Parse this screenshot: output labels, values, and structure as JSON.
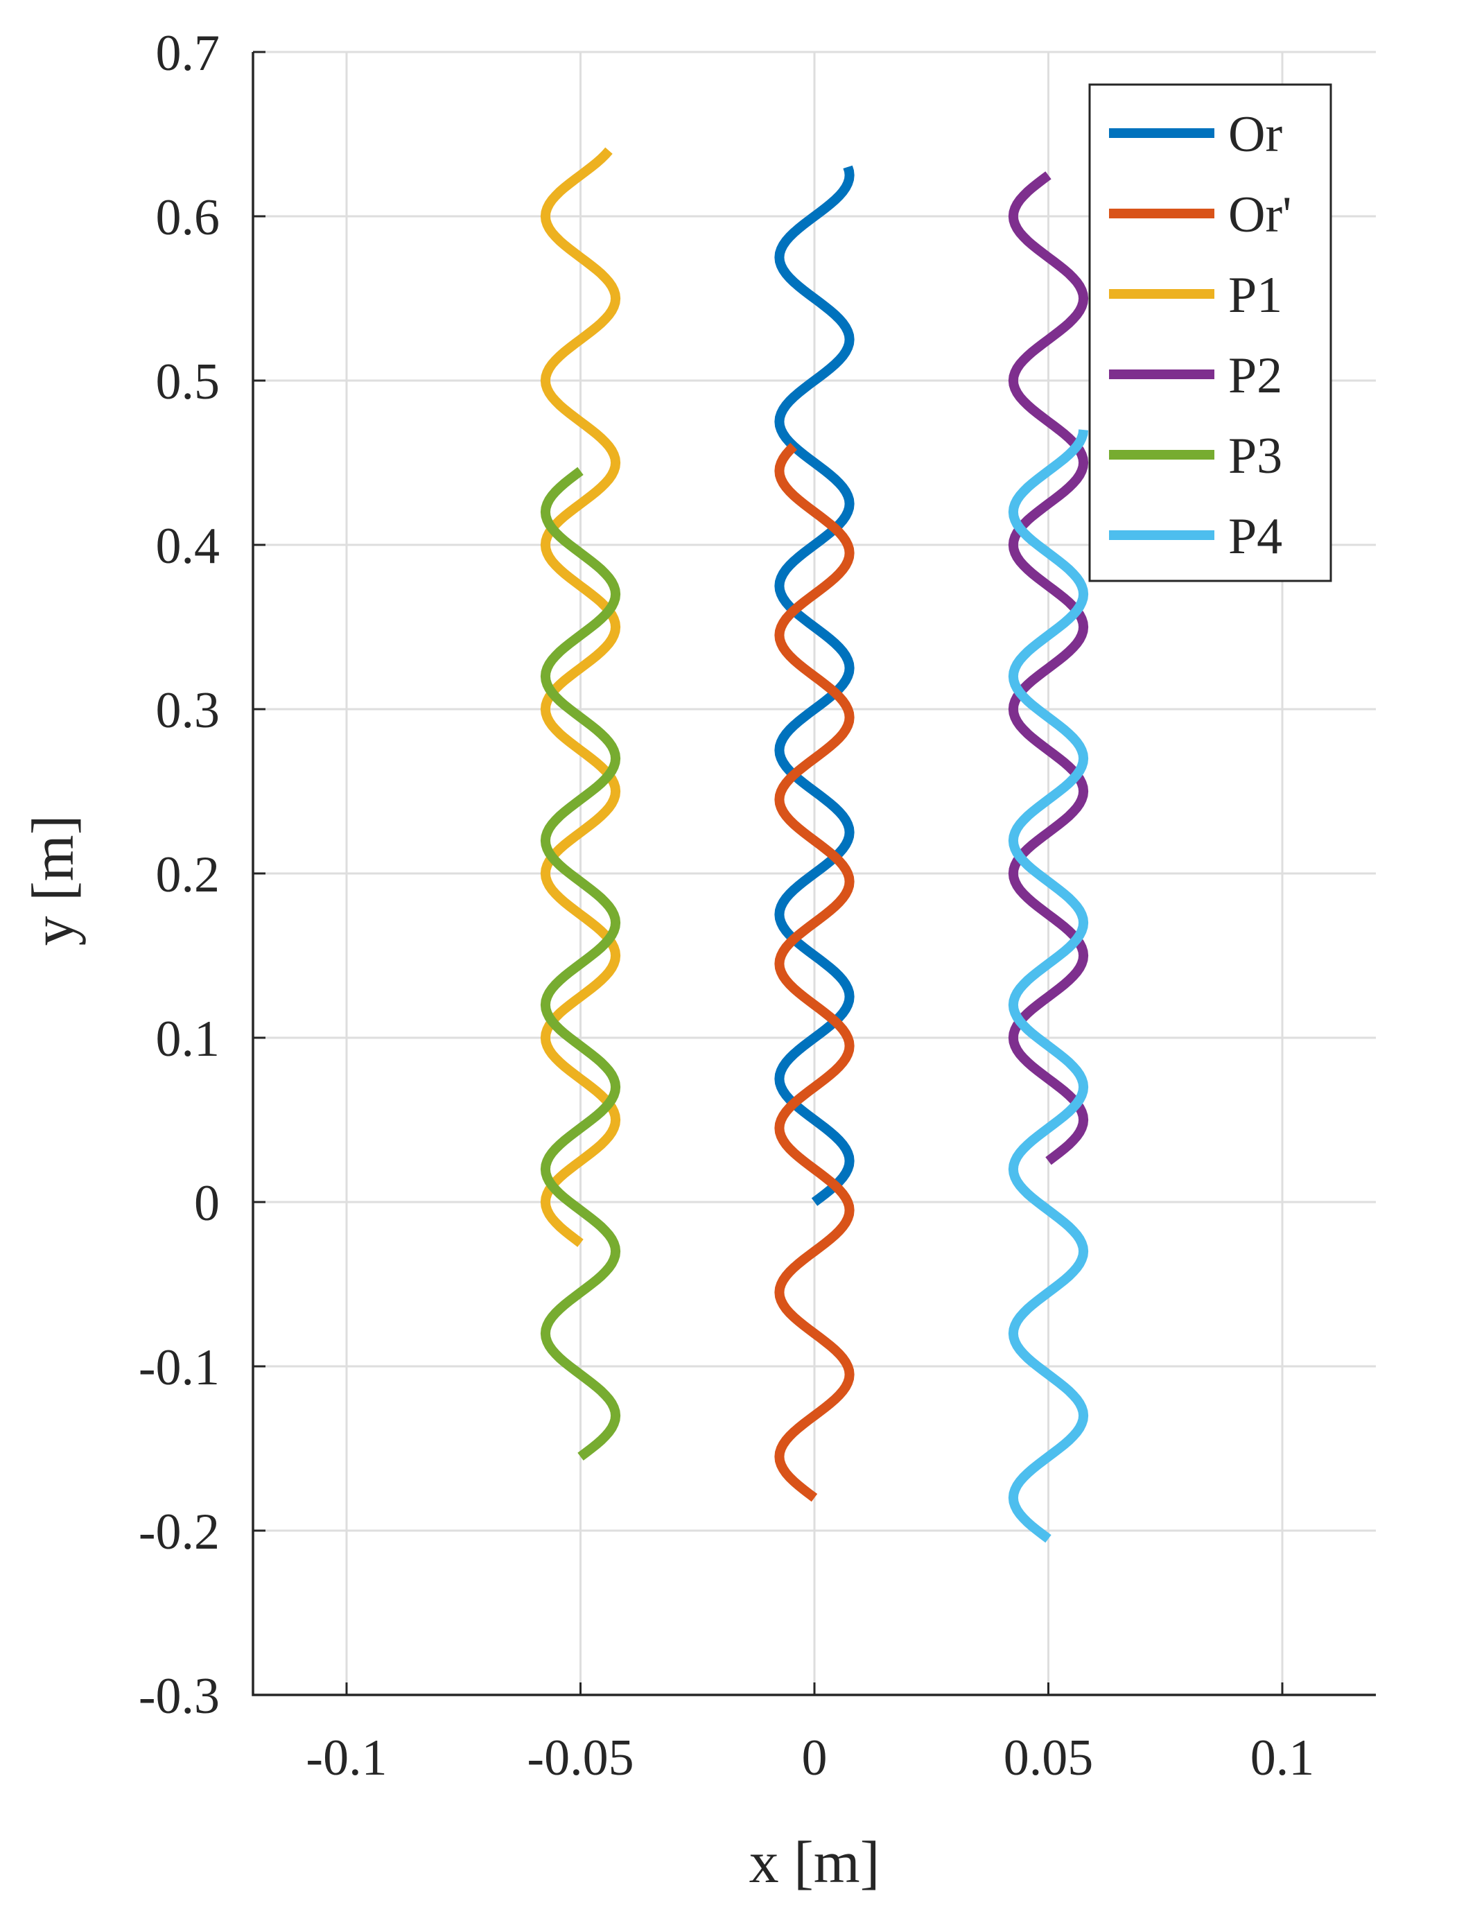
{
  "chart_data": {
    "type": "line",
    "title": "",
    "xlabel": "x [m]",
    "ylabel": "y [m]",
    "xlim": [
      -0.12,
      0.12
    ],
    "ylim": [
      -0.3,
      0.7
    ],
    "grid": true,
    "legend_position": "top-right",
    "xticks": [
      -0.1,
      -0.05,
      0,
      0.05,
      0.1
    ],
    "xtick_labels": [
      "-0.1",
      "-0.05",
      "0",
      "0.05",
      "0.1"
    ],
    "yticks": [
      -0.3,
      -0.2,
      -0.1,
      0,
      0.1,
      0.2,
      0.3,
      0.4,
      0.5,
      0.6,
      0.7
    ],
    "ytick_labels": [
      "-0.3",
      "-0.2",
      "-0.1",
      "0",
      "0.1",
      "0.2",
      "0.3",
      "0.4",
      "0.5",
      "0.6",
      "0.7"
    ],
    "series": [
      {
        "name": "Or",
        "color": "#0072BD",
        "x_center": 0.0,
        "amplitude": 0.0075,
        "y_start": 0.0,
        "y_end": 0.63,
        "period": 0.1,
        "phase": 0.0,
        "direction": 1
      },
      {
        "name": "Or'",
        "color": "#D95319",
        "x_center": 0.0,
        "amplitude": 0.0075,
        "y_start": -0.18,
        "y_end": 0.46,
        "period": 0.1,
        "phase": 0.0,
        "direction": -1
      },
      {
        "name": "P1",
        "color": "#EDB120",
        "x_center": -0.05,
        "amplitude": 0.0075,
        "y_start": -0.025,
        "y_end": 0.64,
        "period": 0.1,
        "phase": 0.0,
        "direction": -1
      },
      {
        "name": "P2",
        "color": "#7E2F8E",
        "x_center": 0.05,
        "amplitude": 0.0075,
        "y_start": 0.025,
        "y_end": 0.625,
        "period": 0.1,
        "phase": 0.0,
        "direction": 1
      },
      {
        "name": "P3",
        "color": "#77AC30",
        "x_center": -0.05,
        "amplitude": 0.0075,
        "y_start": -0.155,
        "y_end": 0.445,
        "period": 0.1,
        "phase": 0.0,
        "direction": 1
      },
      {
        "name": "P4",
        "color": "#4DBEEE",
        "x_center": 0.05,
        "amplitude": 0.0075,
        "y_start": -0.205,
        "y_end": 0.47,
        "period": 0.1,
        "phase": 0.0,
        "direction": -1
      }
    ]
  }
}
